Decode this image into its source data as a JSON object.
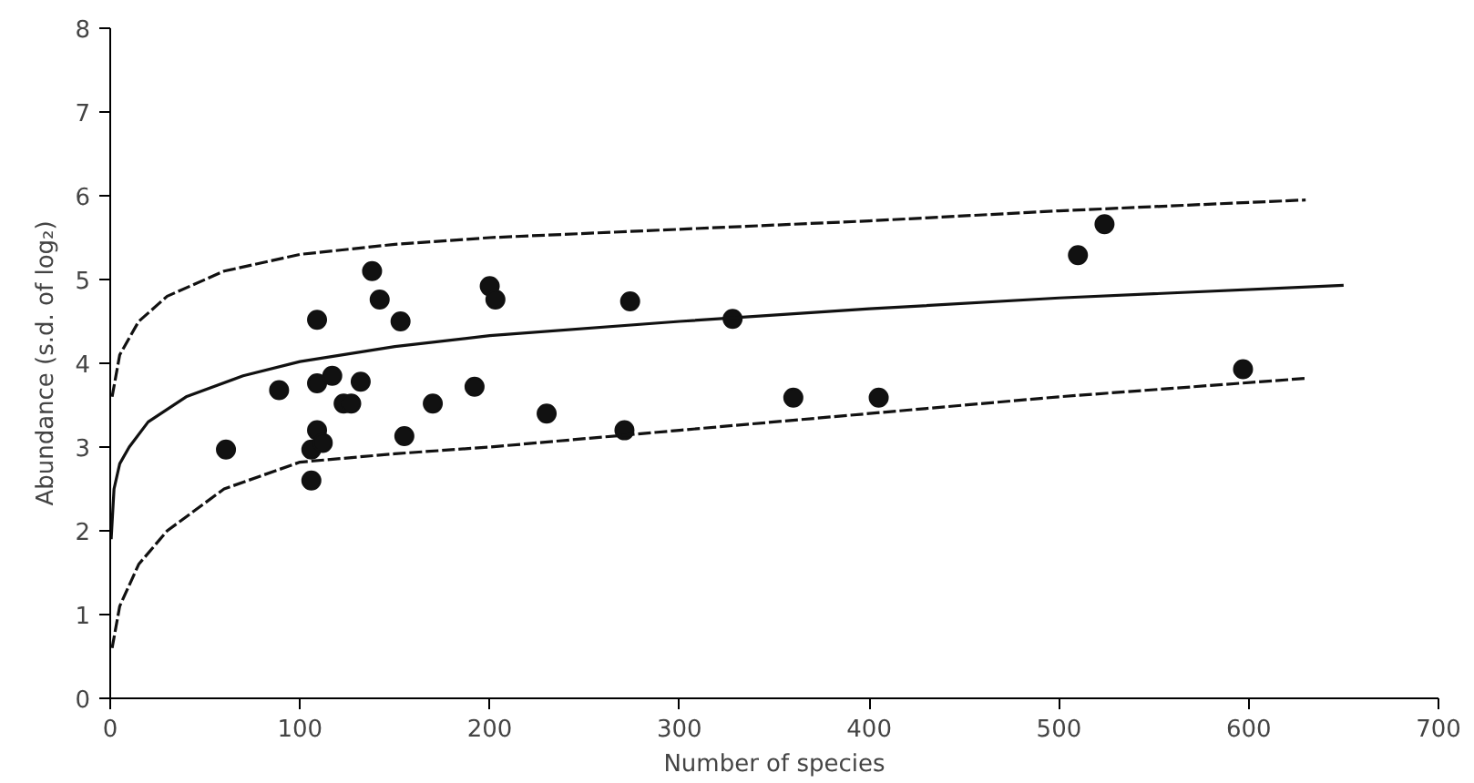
{
  "chart_data": {
    "type": "scatter",
    "xlabel": "Number of species",
    "ylabel": "Abundance (s.d. of log₂)",
    "xlim": [
      0,
      700
    ],
    "ylim": [
      0,
      8
    ],
    "xticks": [
      0,
      100,
      200,
      300,
      400,
      500,
      600,
      700
    ],
    "yticks": [
      0,
      1,
      2,
      3,
      4,
      5,
      6,
      7,
      8
    ],
    "grid": false,
    "series": [
      {
        "color": "#111111",
        "marker": "circle",
        "x": [
          61,
          89,
          106,
          106,
          109,
          109,
          109,
          112,
          117,
          123,
          127,
          132,
          138,
          142,
          153,
          155,
          170,
          192,
          200,
          203,
          230,
          271,
          274,
          328,
          360,
          405,
          510,
          524,
          597
        ],
        "values": [
          2.97,
          3.68,
          2.6,
          2.97,
          4.52,
          3.76,
          3.2,
          3.05,
          3.85,
          3.52,
          3.52,
          3.78,
          5.1,
          4.76,
          4.5,
          3.13,
          3.52,
          3.72,
          4.92,
          4.76,
          3.4,
          3.2,
          4.74,
          4.53,
          3.59,
          3.59,
          5.29,
          5.66,
          3.93
        ]
      },
      {
        "type": "line",
        "color": "#111111",
        "line_style": "solid",
        "marker": "none",
        "x": [
          0.5,
          2,
          5,
          10,
          20,
          40,
          70,
          100,
          150,
          200,
          300,
          400,
          500,
          650
        ],
        "values": [
          1.9,
          2.5,
          2.8,
          3.0,
          3.3,
          3.6,
          3.85,
          4.02,
          4.2,
          4.33,
          4.5,
          4.65,
          4.78,
          4.93
        ]
      },
      {
        "type": "line",
        "color": "#111111",
        "line_style": "dashed",
        "marker": "none",
        "x": [
          1,
          5,
          15,
          30,
          60,
          100,
          150,
          200,
          300,
          400,
          500,
          630
        ],
        "values": [
          3.6,
          4.1,
          4.5,
          4.8,
          5.1,
          5.3,
          5.42,
          5.5,
          5.6,
          5.7,
          5.82,
          5.95
        ]
      },
      {
        "type": "line",
        "color": "#111111",
        "line_style": "dashed",
        "marker": "none",
        "x": [
          1,
          5,
          15,
          30,
          60,
          100,
          150,
          200,
          300,
          400,
          500,
          630
        ],
        "values": [
          0.6,
          1.1,
          1.6,
          2.0,
          2.5,
          2.82,
          2.92,
          3.0,
          3.2,
          3.4,
          3.6,
          3.82
        ]
      }
    ]
  }
}
